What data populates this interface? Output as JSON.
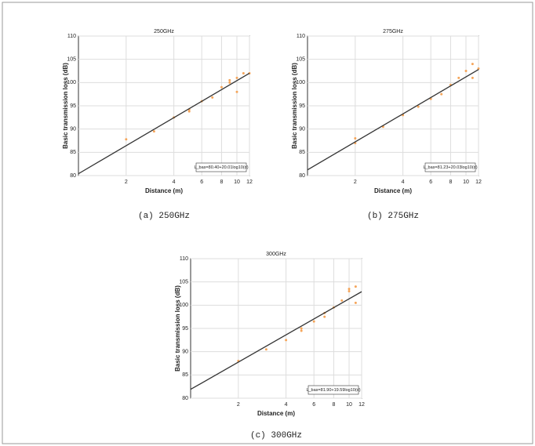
{
  "chart_data": [
    {
      "type": "scatter",
      "title": "250GHz",
      "caption": "(a) 250GHz",
      "xlabel": "Distance (m)",
      "ylabel": "Basic transmission loss (dB)",
      "equation": "L_bas=80.40+20.01log10(d)",
      "xscale": "log",
      "xlim": [
        1,
        12
      ],
      "xticks": [
        2,
        4,
        6,
        8,
        10,
        12
      ],
      "ylim": [
        80,
        110
      ],
      "yticks": [
        80,
        85,
        90,
        95,
        100,
        105,
        110
      ],
      "grid": true,
      "series": [
        {
          "type": "scatter",
          "color": "#f5a55a",
          "x": [
            2,
            3,
            4,
            5,
            5,
            6,
            7,
            8,
            9,
            9,
            10,
            10,
            11,
            12
          ],
          "values": [
            87.8,
            89.5,
            92.5,
            93.8,
            94.2,
            96,
            96.8,
            99,
            100.5,
            100,
            98,
            101,
            102,
            102
          ]
        },
        {
          "type": "line",
          "color": "#333333",
          "x": [
            1,
            12
          ],
          "values": [
            80.4,
            102
          ]
        }
      ]
    },
    {
      "type": "scatter",
      "title": "275GHz",
      "caption": "(b) 275GHz",
      "xlabel": "Distance (m)",
      "ylabel": "Basic transmission loss (dB)",
      "equation": "L_bas=81.23+20.03log10(d)",
      "xscale": "log",
      "xlim": [
        1,
        12
      ],
      "xticks": [
        2,
        4,
        6,
        8,
        10,
        12
      ],
      "ylim": [
        80,
        110
      ],
      "yticks": [
        80,
        85,
        90,
        95,
        100,
        105,
        110
      ],
      "grid": true,
      "series": [
        {
          "type": "scatter",
          "color": "#f5a55a",
          "x": [
            2,
            2,
            3,
            4,
            5,
            6,
            7,
            8,
            9,
            10,
            11,
            11,
            12
          ],
          "values": [
            88,
            87,
            90.5,
            93,
            94.8,
            96.5,
            97.5,
            99.5,
            101,
            102.5,
            104,
            101,
            103
          ]
        },
        {
          "type": "line",
          "color": "#333333",
          "x": [
            1,
            12
          ],
          "values": [
            81.23,
            102.8
          ]
        }
      ]
    },
    {
      "type": "scatter",
      "title": "300GHz",
      "caption": "(c) 300GHz",
      "xlabel": "Distance (m)",
      "ylabel": "Basic transmission loss (dB)",
      "equation": "L_bas=81.90+19.59log10(d)",
      "xscale": "log",
      "xlim": [
        1,
        12
      ],
      "xticks": [
        2,
        4,
        6,
        8,
        10,
        12
      ],
      "ylim": [
        80,
        110
      ],
      "yticks": [
        80,
        85,
        90,
        95,
        100,
        105,
        110
      ],
      "grid": true,
      "series": [
        {
          "type": "scatter",
          "color": "#f5a55a",
          "x": [
            2,
            3,
            4,
            5,
            5,
            6,
            7,
            7,
            8,
            9,
            10,
            10,
            11,
            11
          ],
          "values": [
            88,
            90.5,
            92.5,
            94.5,
            95,
            96.5,
            97.5,
            98.3,
            99.5,
            101,
            103,
            103.5,
            104,
            100.5
          ]
        },
        {
          "type": "line",
          "color": "#333333",
          "x": [
            1,
            12
          ],
          "values": [
            81.9,
            102.9
          ]
        }
      ]
    }
  ]
}
